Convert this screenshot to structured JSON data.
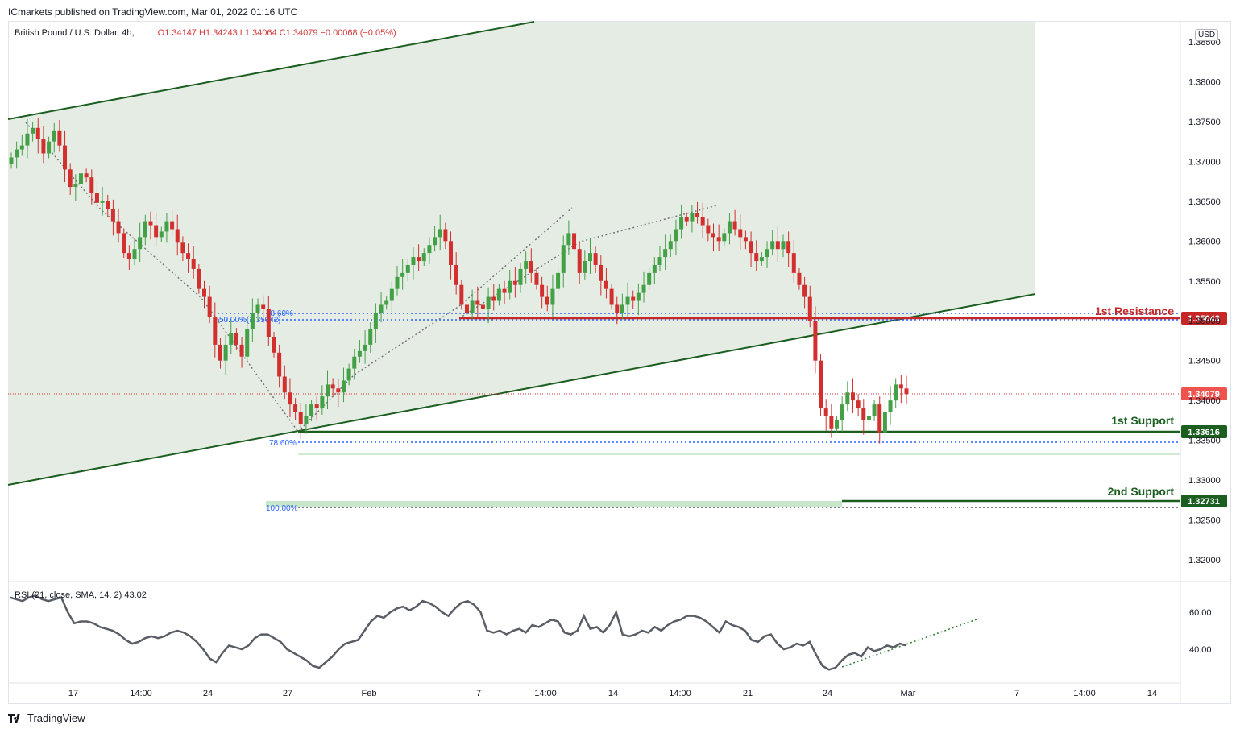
{
  "header": {
    "publisher_line": "ICmarkets published on TradingView.com, Mar 01, 2022 01:16 UTC",
    "symbol": "British Pound / U.S. Dollar, 4h,",
    "ohlc": "O1.34147  H1.34243  L1.34064  C1.34079  −0.00068 (−0.05%)",
    "currency": "USD"
  },
  "rsi": {
    "legend": "RSI (21, close, SMA, 14, 2)  43.02",
    "ticks": [
      "60.00",
      "40.00"
    ]
  },
  "footer": {
    "brand": "TradingView",
    "logo_icon": "tradingview-logo-icon"
  },
  "chart_data": {
    "type": "candlestick",
    "symbol": "British Pound / U.S. Dollar",
    "timeframe": "4h",
    "ylim": [
      1.316,
      1.388
    ],
    "y_ticks": [
      "1.38500",
      "1.38000",
      "1.37500",
      "1.37000",
      "1.36500",
      "1.36000",
      "1.35500",
      "1.35000",
      "1.34500",
      "1.34000",
      "1.33500",
      "1.33000",
      "1.32500",
      "1.32000"
    ],
    "x_ticks": [
      "17",
      "14:00",
      "24",
      "27",
      "Feb",
      "7",
      "14:00",
      "14",
      "14:00",
      "21",
      "24",
      "Mar",
      "7",
      "14:00",
      "14"
    ],
    "closes": [
      1.3705,
      1.3715,
      1.372,
      1.3735,
      1.3742,
      1.3728,
      1.371,
      1.3725,
      1.3738,
      1.372,
      1.369,
      1.3668,
      1.3672,
      1.3685,
      1.368,
      1.366,
      1.3648,
      1.365,
      1.364,
      1.3625,
      1.361,
      1.3585,
      1.3578,
      1.359,
      1.3605,
      1.3625,
      1.362,
      1.3605,
      1.3612,
      1.3625,
      1.3615,
      1.3598,
      1.3585,
      1.3578,
      1.3565,
      1.354,
      1.353,
      1.3505,
      1.347,
      1.345,
      1.347,
      1.3485,
      1.347,
      1.3455,
      1.349,
      1.351,
      1.352,
      1.3515,
      1.348,
      1.346,
      1.343,
      1.341,
      1.3395,
      1.3385,
      1.337,
      1.338,
      1.3395,
      1.339,
      1.3405,
      1.342,
      1.3415,
      1.341,
      1.3425,
      1.344,
      1.3455,
      1.3462,
      1.347,
      1.349,
      1.351,
      1.352,
      1.3525,
      1.354,
      1.3555,
      1.356,
      1.357,
      1.358,
      1.3575,
      1.3585,
      1.3595,
      1.3605,
      1.3615,
      1.36,
      1.357,
      1.3545,
      1.352,
      1.351,
      1.3525,
      1.352,
      1.3515,
      1.353,
      1.3525,
      1.354,
      1.3535,
      1.355,
      1.3545,
      1.3565,
      1.3575,
      1.356,
      1.3545,
      1.353,
      1.352,
      1.354,
      1.356,
      1.3595,
      1.361,
      1.359,
      1.356,
      1.3575,
      1.3585,
      1.357,
      1.355,
      1.354,
      1.352,
      1.351,
      1.352,
      1.353,
      1.3525,
      1.3535,
      1.3545,
      1.356,
      1.357,
      1.358,
      1.359,
      1.36,
      1.3615,
      1.363,
      1.3625,
      1.3635,
      1.363,
      1.362,
      1.361,
      1.3605,
      1.36,
      1.361,
      1.3625,
      1.3615,
      1.3605,
      1.36,
      1.3585,
      1.3575,
      1.358,
      1.359,
      1.36,
      1.359,
      1.36,
      1.3585,
      1.356,
      1.3545,
      1.353,
      1.35,
      1.345,
      1.339,
      1.338,
      1.3365,
      1.3375,
      1.3395,
      1.341,
      1.34,
      1.339,
      1.3375,
      1.338,
      1.3395,
      1.336,
      1.3385,
      1.34,
      1.342,
      1.3415,
      1.3408
    ],
    "horizontal_levels": [
      {
        "name": "1st Resistance",
        "price": "1.35043",
        "color": "#c62828"
      },
      {
        "name": "1st Support",
        "price": "1.33616",
        "color": "#1b5e20"
      },
      {
        "name": "2nd Support",
        "price": "1.32731",
        "color": "#1b5e20"
      }
    ],
    "last_price": "1.34079",
    "fibonacci": [
      {
        "label": "50.00%(1.35042)",
        "overlap_label": "78.60%",
        "price": 1.35042
      },
      {
        "label": "78.60%",
        "price": 1.3347
      },
      {
        "label": "100.00%",
        "price": 1.3265
      }
    ],
    "channel": "ascending",
    "rsi_values": [
      68,
      67,
      66,
      68,
      69,
      67,
      66,
      67,
      68,
      60,
      54,
      55,
      55,
      54,
      52,
      51,
      50,
      48,
      45,
      43,
      44,
      46,
      47,
      46,
      47,
      49,
      50,
      49,
      47,
      44,
      40,
      35,
      33,
      38,
      42,
      41,
      40,
      42,
      46,
      48,
      48,
      46,
      44,
      40,
      38,
      36,
      34,
      31,
      30,
      33,
      36,
      40,
      43,
      44,
      45,
      50,
      55,
      58,
      57,
      60,
      62,
      63,
      61,
      63,
      66,
      65,
      63,
      60,
      58,
      62,
      65,
      66,
      64,
      60,
      50,
      49,
      50,
      48,
      50,
      51,
      49,
      53,
      52,
      54,
      56,
      55,
      49,
      48,
      50,
      58,
      51,
      52,
      49,
      53,
      60,
      48,
      47,
      48,
      50,
      49,
      52,
      50,
      53,
      55,
      56,
      58,
      58,
      57,
      55,
      52,
      49,
      55,
      53,
      52,
      50,
      45,
      44,
      47,
      48,
      43,
      40,
      41,
      43,
      42,
      44,
      37,
      31,
      29,
      30,
      34,
      37,
      38,
      36,
      41,
      39,
      40,
      42,
      41,
      43,
      42
    ]
  }
}
